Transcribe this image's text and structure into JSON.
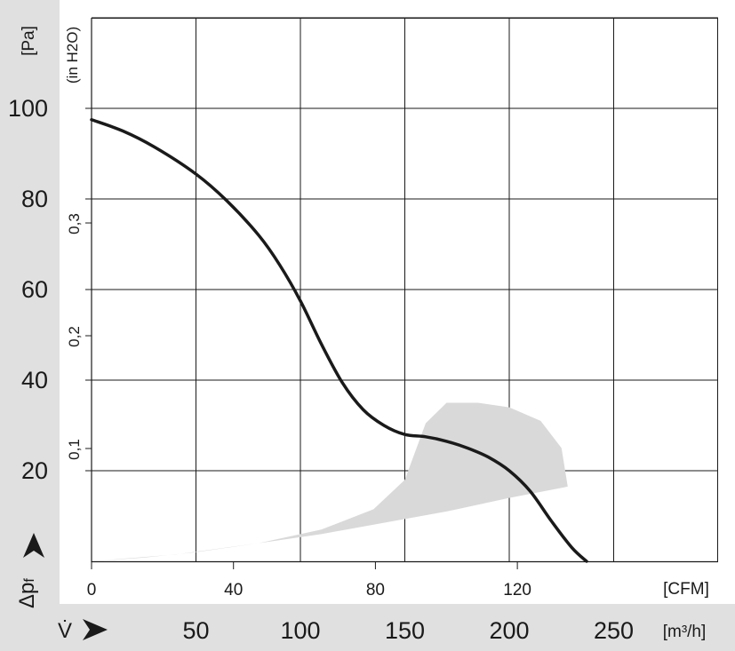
{
  "chart_data": {
    "type": "line",
    "y_axis_pa": {
      "unit_label": "[Pa]",
      "ticks": [
        20,
        40,
        60,
        80,
        100
      ],
      "range": [
        0,
        120
      ],
      "symbol": "Δp",
      "symbol_sub": "f"
    },
    "y_axis_inh2o": {
      "unit_label": "(in H2O)",
      "ticks": [
        "0,1",
        "0,2",
        "0,3"
      ],
      "tick_values_pa": [
        24.9,
        49.8,
        74.7
      ]
    },
    "x_axis_m3h": {
      "label_symbol": "V̇",
      "unit_label": "[m³/h]",
      "ticks": [
        50,
        100,
        150,
        200,
        250
      ],
      "range": [
        0,
        300
      ]
    },
    "x_axis_cfm": {
      "unit_label": "[CFM]",
      "ticks": [
        0,
        40,
        80,
        120
      ],
      "cfm_to_m3h": 1.699
    },
    "grid": true,
    "series": [
      {
        "x_m3h": [
          0,
          15,
          30,
          50,
          65,
          80,
          90,
          100,
          110,
          120,
          130,
          140,
          150,
          160,
          170,
          180,
          190,
          200,
          210,
          220,
          230,
          237
        ],
        "y_pa": [
          97.5,
          95,
          91.5,
          85.5,
          79.5,
          72,
          65.5,
          57.5,
          48,
          39.5,
          33.5,
          30,
          28,
          27.5,
          26.5,
          25,
          23,
          20,
          15.5,
          9,
          3,
          0
        ],
        "color": "#1a1a1a"
      }
    ],
    "region": {
      "color": "#d9d9d9",
      "outline_x_m3h": [
        0,
        40,
        80,
        110,
        135,
        150,
        160,
        170,
        185,
        200,
        215,
        225,
        228,
        200,
        170,
        140,
        110,
        80,
        50,
        25,
        0
      ],
      "outline_y_pa": [
        0,
        1.5,
        4,
        7,
        11.5,
        18,
        30.5,
        35,
        35,
        34,
        31,
        25,
        16.5,
        14,
        11,
        8.5,
        6,
        4,
        2,
        0.8,
        0
      ]
    }
  }
}
